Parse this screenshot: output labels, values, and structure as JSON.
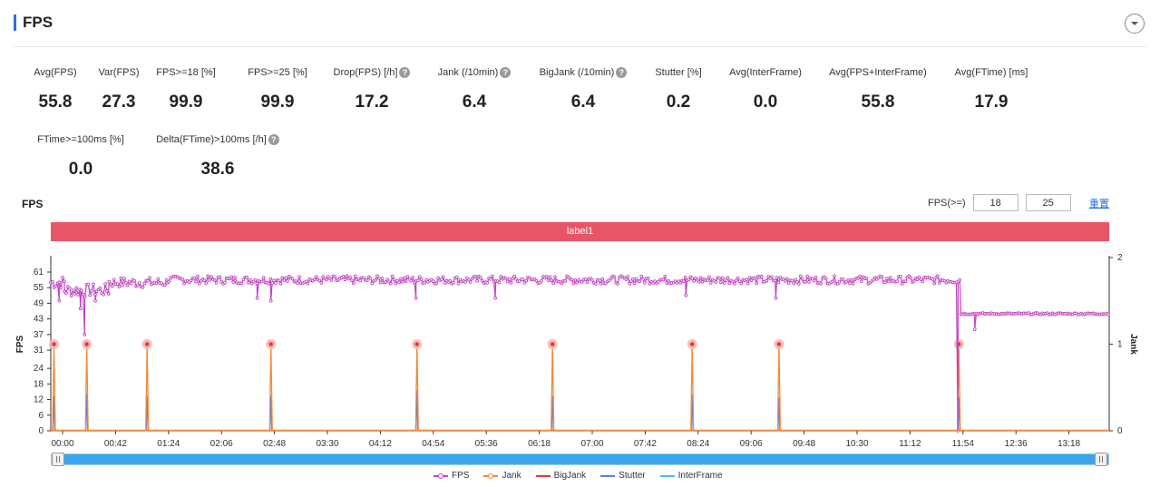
{
  "header": {
    "title": "FPS"
  },
  "stats": [
    {
      "label": "Avg(FPS)",
      "value": "55.8",
      "help": false
    },
    {
      "label": "Var(FPS)",
      "value": "27.3",
      "help": false
    },
    {
      "label": "FPS>=18 [%]",
      "value": "99.9",
      "help": false
    },
    {
      "label": "FPS>=25 [%]",
      "value": "99.9",
      "help": false
    },
    {
      "label": "Drop(FPS) [/h]",
      "value": "17.2",
      "help": true
    },
    {
      "label": "Jank (/10min)",
      "value": "6.4",
      "help": true
    },
    {
      "label": "BigJank (/10min)",
      "value": "6.4",
      "help": true
    },
    {
      "label": "Stutter [%]",
      "value": "0.2",
      "help": false
    },
    {
      "label": "Avg(InterFrame)",
      "value": "0.0",
      "help": false
    },
    {
      "label": "Avg(FPS+InterFrame)",
      "value": "55.8",
      "help": false
    },
    {
      "label": "Avg(FTime) [ms]",
      "value": "17.9",
      "help": false
    },
    {
      "label": "FTime>=100ms [%]",
      "value": "0.0",
      "help": false
    },
    {
      "label": "Delta(FTime)>100ms [/h]",
      "value": "38.6",
      "help": true
    }
  ],
  "chart_header": {
    "title": "FPS",
    "filter_label": "FPS(>=)",
    "threshold_1": "18",
    "threshold_2": "25",
    "reset_label": "重置"
  },
  "label_band": "label1",
  "colors": {
    "fps": "#c243c2",
    "jank": "#f28a3c",
    "bigjank": "#e0393a",
    "stutter": "#5b7fd6",
    "interframe": "#3fc3e8",
    "jank_marker": "#e0393a",
    "label_band": "#e85565",
    "scroller": "#3aa7ec"
  },
  "chart_data": {
    "type": "line",
    "title": "",
    "xlabel": "",
    "ylabel": "FPS",
    "y2label": "Jank",
    "x_tick_labels": [
      "00:00",
      "00:42",
      "01:24",
      "02:06",
      "02:48",
      "03:30",
      "04:12",
      "04:54",
      "05:36",
      "06:18",
      "07:00",
      "07:42",
      "08:24",
      "09:06",
      "09:48",
      "10:30",
      "11:12",
      "11:54",
      "12:36",
      "13:18"
    ],
    "x_range_seconds": [
      0,
      1000
    ],
    "ylim": [
      0,
      61
    ],
    "y_ticks": [
      0,
      6,
      12,
      18,
      24,
      31,
      37,
      43,
      49,
      55,
      61
    ],
    "y2lim": [
      0,
      2
    ],
    "y2_ticks": [
      0,
      1,
      2
    ],
    "legend": [
      "FPS",
      "Jank",
      "BigJank",
      "Stutter",
      "InterFrame"
    ],
    "legend_position": "bottom",
    "series": [
      {
        "name": "FPS",
        "segments": [
          {
            "x_start": 0,
            "x_end": 13,
            "level": 57,
            "jitter": 2.5
          },
          {
            "x_start": 13,
            "x_end": 55,
            "level": 54,
            "jitter": 2.5
          },
          {
            "x_start": 55,
            "x_end": 110,
            "level": 57,
            "jitter": 2.0
          },
          {
            "x_start": 110,
            "x_end": 860,
            "level": 58,
            "jitter": 1.5
          },
          {
            "x_start": 860,
            "x_end": 1000,
            "level": 45,
            "jitter": 0.5
          }
        ],
        "dips": [
          {
            "x": 8,
            "value": 50
          },
          {
            "x": 28,
            "value": 47
          },
          {
            "x": 32,
            "value": 37
          },
          {
            "x": 42,
            "value": 50
          },
          {
            "x": 195,
            "value": 51
          },
          {
            "x": 208,
            "value": 50
          },
          {
            "x": 345,
            "value": 51
          },
          {
            "x": 420,
            "value": 51
          },
          {
            "x": 600,
            "value": 52
          },
          {
            "x": 685,
            "value": 51
          },
          {
            "x": 857,
            "value": 0
          },
          {
            "x": 873,
            "value": 39
          }
        ]
      },
      {
        "name": "Jank",
        "points": [
          {
            "x": 3,
            "value": 1
          },
          {
            "x": 34,
            "value": 1
          },
          {
            "x": 91,
            "value": 1
          },
          {
            "x": 208,
            "value": 1
          },
          {
            "x": 346,
            "value": 1
          },
          {
            "x": 474,
            "value": 1
          },
          {
            "x": 606,
            "value": 1
          },
          {
            "x": 688,
            "value": 1
          },
          {
            "x": 858,
            "value": 1
          }
        ]
      },
      {
        "name": "BigJank",
        "points": []
      },
      {
        "name": "Stutter",
        "points": [
          {
            "x": 3,
            "value": 0.4
          },
          {
            "x": 34,
            "value": 0.43
          },
          {
            "x": 91,
            "value": 0.4
          },
          {
            "x": 208,
            "value": 0.41
          },
          {
            "x": 346,
            "value": 0.47
          },
          {
            "x": 474,
            "value": 0.4
          },
          {
            "x": 606,
            "value": 0.42
          },
          {
            "x": 688,
            "value": 0.39
          },
          {
            "x": 858,
            "value": 0.39
          }
        ]
      },
      {
        "name": "InterFrame",
        "points": []
      }
    ]
  }
}
